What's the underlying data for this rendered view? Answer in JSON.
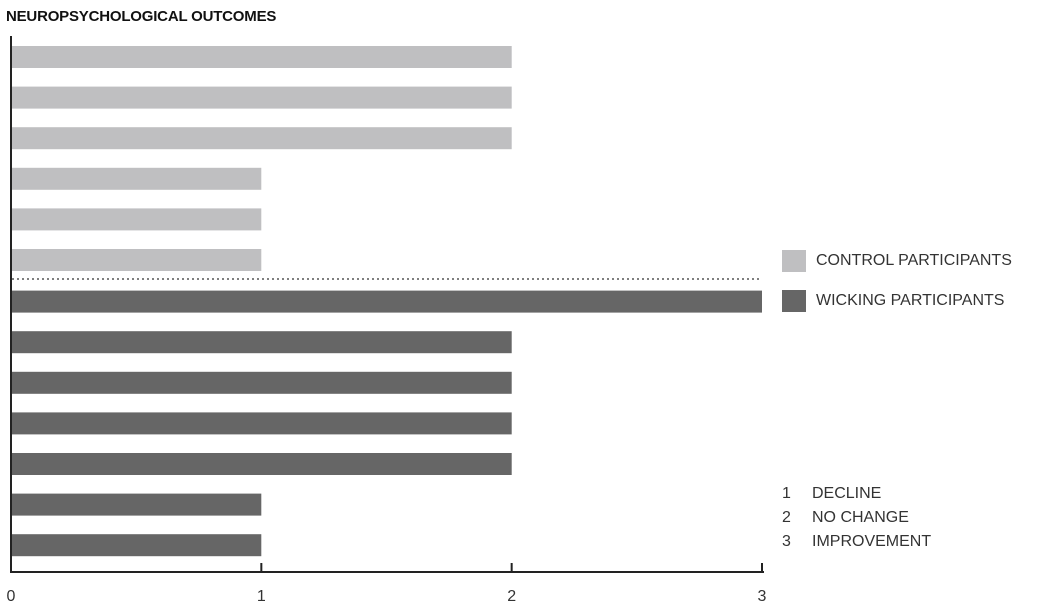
{
  "chart_data": {
    "type": "bar",
    "orientation": "horizontal",
    "title": "NEUROPSYCHOLOGICAL OUTCOMES",
    "xlabel": "",
    "ylabel": "",
    "xlim": [
      0,
      3
    ],
    "xticks": [
      "0",
      "1",
      "2",
      "3"
    ],
    "grid": false,
    "legend_position": "right",
    "series": [
      {
        "name": "CONTROL PARTICIPANTS",
        "color": "#bfbfc1",
        "values": [
          2,
          2,
          2,
          1,
          1,
          1
        ]
      },
      {
        "name": "WICKING PARTICIPANTS",
        "color": "#666666",
        "values": [
          3,
          2,
          2,
          2,
          2,
          1,
          1
        ]
      }
    ],
    "group_separator": "dotted"
  },
  "key": [
    {
      "num": "1",
      "label": "DECLINE"
    },
    {
      "num": "2",
      "label": "NO CHANGE"
    },
    {
      "num": "3",
      "label": "IMPROVEMENT"
    }
  ]
}
